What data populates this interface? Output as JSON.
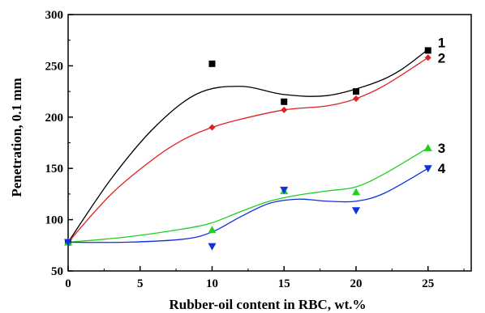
{
  "chart_data": {
    "type": "scatter",
    "xlabel": "Rubber-oil content in RBC, wt.%",
    "ylabel": "Penetration, 0.1 mm",
    "xlim": [
      0,
      28
    ],
    "ylim": [
      50,
      300
    ],
    "xticks": [
      0,
      5,
      10,
      15,
      20,
      25
    ],
    "yticks": [
      50,
      100,
      150,
      200,
      250,
      300
    ],
    "grid": false,
    "legend": "inline labels at right end of curves",
    "series": [
      {
        "name": "1",
        "marker": "square",
        "color": "#000000",
        "x": [
          0,
          10,
          15,
          20,
          25
        ],
        "y": [
          78,
          252,
          215,
          225,
          265
        ],
        "fit_x": [
          0,
          3,
          6,
          9,
          12,
          15,
          18,
          21,
          23,
          25
        ],
        "fit_y": [
          78,
          140,
          190,
          223,
          230,
          222,
          221,
          232,
          245,
          266
        ]
      },
      {
        "name": "2",
        "marker": "diamond",
        "color": "#e02020",
        "x": [
          0,
          10,
          15,
          20,
          25
        ],
        "y": [
          78,
          190,
          207,
          218,
          258
        ],
        "fit_x": [
          0,
          3,
          6,
          8,
          10,
          12,
          15,
          18,
          20,
          22,
          25
        ],
        "fit_y": [
          78,
          125,
          160,
          178,
          190,
          198,
          207,
          211,
          218,
          231,
          258
        ]
      },
      {
        "name": "3",
        "marker": "triangle-up",
        "color": "#20d020",
        "x": [
          0,
          10,
          15,
          20,
          25
        ],
        "y": [
          78,
          90,
          128,
          127,
          170
        ],
        "fit_x": [
          0,
          4,
          8,
          10,
          12,
          14,
          16,
          18,
          20,
          22,
          25
        ],
        "fit_y": [
          78,
          83,
          91,
          97,
          108,
          118,
          124,
          128,
          132,
          145,
          170
        ]
      },
      {
        "name": "4",
        "marker": "triangle-down",
        "color": "#1030e0",
        "x": [
          0,
          10,
          15,
          20,
          25
        ],
        "y": [
          78,
          74,
          129,
          109,
          150
        ],
        "fit_x": [
          0,
          4,
          8,
          10,
          12,
          14,
          16,
          18,
          20,
          22,
          25
        ],
        "fit_y": [
          78,
          78,
          81,
          88,
          103,
          116,
          120,
          118,
          118,
          126,
          150
        ]
      }
    ]
  }
}
